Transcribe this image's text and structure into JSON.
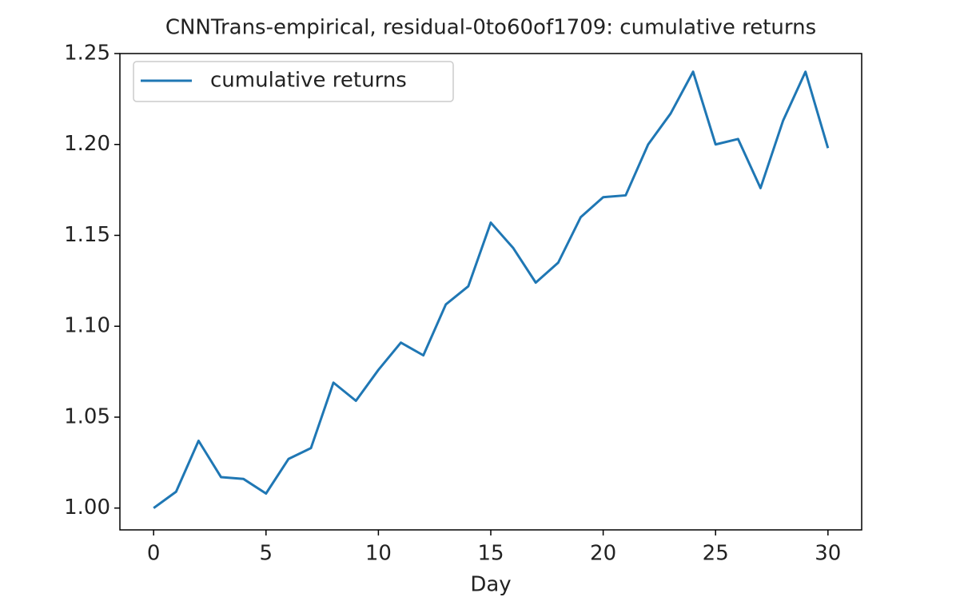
{
  "chart_data": {
    "type": "line",
    "title": "CNNTrans-empirical, residual-0to60of1709: cumulative returns",
    "xlabel": "Day",
    "x": [
      0,
      1,
      2,
      3,
      4,
      5,
      6,
      7,
      8,
      9,
      10,
      11,
      12,
      13,
      14,
      15,
      16,
      17,
      18,
      19,
      20,
      21,
      22,
      23,
      24,
      25,
      26,
      27,
      28,
      29,
      30
    ],
    "series": [
      {
        "name": "cumulative returns",
        "color": "#1f77b4",
        "values": [
          1.0,
          1.009,
          1.037,
          1.017,
          1.016,
          1.008,
          1.027,
          1.033,
          1.069,
          1.059,
          1.076,
          1.091,
          1.084,
          1.112,
          1.122,
          1.157,
          1.143,
          1.124,
          1.135,
          1.16,
          1.171,
          1.172,
          1.2,
          1.217,
          1.24,
          1.2,
          1.203,
          1.176,
          1.213,
          1.24,
          1.198
        ]
      }
    ],
    "xlim": [
      -1.5,
      31.5
    ],
    "xticks": [
      0,
      5,
      10,
      15,
      20,
      25,
      30
    ],
    "ylim": [
      0.988,
      1.25
    ],
    "yticks": [
      {
        "value": 1.0,
        "label": "1.00"
      },
      1.05,
      {
        "value": 1.1,
        "label": "1.10"
      },
      1.15,
      {
        "value": 1.2,
        "label": "1.20"
      },
      1.25
    ],
    "legend": "upper left",
    "grid": false
  }
}
